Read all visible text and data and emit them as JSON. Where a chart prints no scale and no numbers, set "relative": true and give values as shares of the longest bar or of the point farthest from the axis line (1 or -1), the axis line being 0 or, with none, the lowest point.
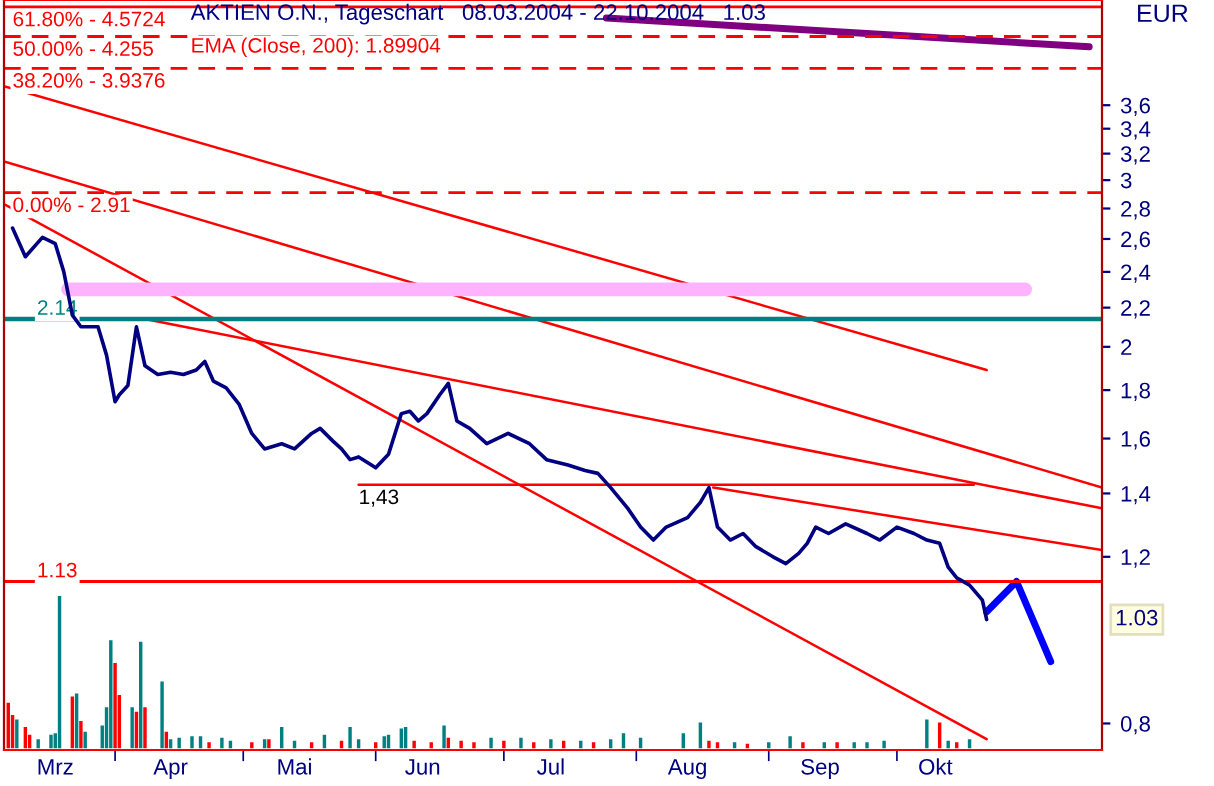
{
  "chart_data": [
    {
      "type": "line",
      "title": "AKTIEN O.N., Tageschart   08.03.2004 - 22.10.2004   1.03",
      "ylabel": "EUR",
      "log": "y",
      "grid": false,
      "legend": false,
      "xlim": [
        "2004-03-06",
        "2004-11-18"
      ],
      "xticks": [
        {
          "value": "2004-03-18",
          "label": "Mrz"
        },
        {
          "value": "2004-04-01",
          "label": null
        },
        {
          "value": "2004-04-14",
          "label": "Apr"
        },
        {
          "value": "2004-05-01",
          "label": null
        },
        {
          "value": "2004-05-13",
          "label": "Mai"
        },
        {
          "value": "2004-06-01",
          "label": null
        },
        {
          "value": "2004-06-12",
          "label": "Jun"
        },
        {
          "value": "2004-07-01",
          "label": null
        },
        {
          "value": "2004-07-12",
          "label": "Jul"
        },
        {
          "value": "2004-08-01",
          "label": null
        },
        {
          "value": "2004-08-13",
          "label": "Aug"
        },
        {
          "value": "2004-09-01",
          "label": null
        },
        {
          "value": "2004-09-13",
          "label": "Sep"
        },
        {
          "value": "2004-10-01",
          "label": null
        },
        {
          "value": "2004-10-10",
          "label": "Okt"
        }
      ],
      "ylim": [
        0.75,
        4.65
      ],
      "yticks": [
        {
          "value": 0.8,
          "label": "0,8"
        },
        {
          "value": 1.2,
          "label": "1,2"
        },
        {
          "value": 1.4,
          "label": "1,4"
        },
        {
          "value": 1.6,
          "label": "1,6"
        },
        {
          "value": 1.8,
          "label": "1,8"
        },
        {
          "value": 2,
          "label": "2"
        },
        {
          "value": 2.2,
          "label": "2,2"
        },
        {
          "value": 2.4,
          "label": "2,4"
        },
        {
          "value": 2.6,
          "label": "2,6"
        },
        {
          "value": 2.8,
          "label": "2,8"
        },
        {
          "value": 3,
          "label": "3"
        },
        {
          "value": 3.2,
          "label": "3,2"
        },
        {
          "value": 3.4,
          "label": "3,4"
        },
        {
          "value": 3.6,
          "label": "3,6"
        }
      ],
      "ref_lines": [
        {
          "axis": "y",
          "value": 4.5724,
          "color": "#ff0000",
          "line_style": "solid"
        },
        {
          "axis": "y",
          "value": 4.255,
          "color": "#ff0000",
          "line_style": "dashed"
        },
        {
          "axis": "y",
          "value": 3.9376,
          "color": "#ff0000",
          "line_style": "dashed"
        },
        {
          "axis": "y",
          "value": 2.91,
          "color": "#ff0000",
          "line_style": "dashed"
        },
        {
          "axis": "y",
          "value": 2.14,
          "label": "2.14",
          "color": "#008080",
          "line_style": "solid"
        },
        {
          "axis": "y",
          "value": 1.13,
          "label": "1.13",
          "color": "#ff0000",
          "line_style": "solid"
        }
      ],
      "annotations": [
        "EMA (Close, 200): 1.89904",
        "1.03",
        {
          "text": "61.80% - 4.5724",
          "x": "2004-03-08",
          "y": 4.5724
        },
        {
          "text": "50.00% - 4.255",
          "x": "2004-03-08",
          "y": 4.255
        },
        {
          "text": "38.20% - 3.9376",
          "x": "2004-03-08",
          "y": 3.9376
        },
        {
          "text": "0.00% - 2.91",
          "x": "2004-03-08",
          "y": 2.91
        },
        {
          "text": "1,43",
          "x": "2004-05-28",
          "y": 1.43
        }
      ],
      "series": [
        {
          "type": "line",
          "color": "#000080",
          "x": [
            "2004-03-08",
            "2004-03-11",
            "2004-03-15",
            "2004-03-18",
            "2004-03-20",
            "2004-03-22",
            "2004-03-24",
            "2004-03-28",
            "2004-03-30",
            "2004-04-01",
            "2004-04-02",
            "2004-04-04",
            "2004-04-06",
            "2004-04-08",
            "2004-04-11",
            "2004-04-14",
            "2004-04-17",
            "2004-04-20",
            "2004-04-22",
            "2004-04-24",
            "2004-04-27",
            "2004-04-30",
            "2004-05-03",
            "2004-05-06",
            "2004-05-10",
            "2004-05-13",
            "2004-05-17",
            "2004-05-19",
            "2004-05-22",
            "2004-05-24",
            "2004-05-26",
            "2004-05-28",
            "2004-05-31",
            "2004-06-01",
            "2004-06-04",
            "2004-06-07",
            "2004-06-09",
            "2004-06-11",
            "2004-06-13",
            "2004-06-16",
            "2004-06-18",
            "2004-06-20",
            "2004-06-23",
            "2004-06-27",
            "2004-07-02",
            "2004-07-07",
            "2004-07-11",
            "2004-07-16",
            "2004-07-20",
            "2004-07-23",
            "2004-07-26",
            "2004-07-30",
            "2004-08-02",
            "2004-08-05",
            "2004-08-08",
            "2004-08-13",
            "2004-08-16",
            "2004-08-18",
            "2004-08-20",
            "2004-08-23",
            "2004-08-26",
            "2004-08-29",
            "2004-09-02",
            "2004-09-05",
            "2004-09-08",
            "2004-09-10",
            "2004-09-12",
            "2004-09-15",
            "2004-09-19",
            "2004-09-24",
            "2004-09-27",
            "2004-10-01",
            "2004-10-05",
            "2004-10-08",
            "2004-10-11",
            "2004-10-13",
            "2004-10-15",
            "2004-10-18",
            "2004-10-21",
            "2004-10-22"
          ],
          "values": [
            2.67,
            2.49,
            2.61,
            2.57,
            2.4,
            2.16,
            2.1,
            2.1,
            1.96,
            1.75,
            1.78,
            1.82,
            2.1,
            1.91,
            1.87,
            1.88,
            1.87,
            1.89,
            1.93,
            1.84,
            1.81,
            1.74,
            1.62,
            1.56,
            1.58,
            1.56,
            1.62,
            1.64,
            1.59,
            1.56,
            1.52,
            1.53,
            1.5,
            1.49,
            1.54,
            1.7,
            1.71,
            1.67,
            1.7,
            1.78,
            1.83,
            1.67,
            1.64,
            1.58,
            1.62,
            1.58,
            1.52,
            1.5,
            1.48,
            1.47,
            1.42,
            1.35,
            1.29,
            1.25,
            1.29,
            1.32,
            1.37,
            1.42,
            1.29,
            1.25,
            1.27,
            1.23,
            1.2,
            1.18,
            1.21,
            1.24,
            1.29,
            1.27,
            1.3,
            1.27,
            1.25,
            1.29,
            1.27,
            1.25,
            1.24,
            1.17,
            1.14,
            1.12,
            1.08,
            1.03
          ]
        },
        {
          "type": "line",
          "color": "#ff0000",
          "x": [
            "2004-03-06",
            "2004-10-22"
          ],
          "values": [
            3.77,
            1.89
          ]
        },
        {
          "type": "line",
          "color": "#ff0000",
          "x": [
            "2004-03-06",
            "2004-11-18"
          ],
          "values": [
            3.14,
            1.42
          ]
        },
        {
          "type": "line",
          "color": "#ff0000",
          "x": [
            "2004-03-06",
            "2004-10-22"
          ],
          "values": [
            2.83,
            0.77
          ]
        },
        {
          "type": "line",
          "color": "#ff0000",
          "x": [
            "2004-04-08",
            "2004-11-18"
          ],
          "values": [
            2.14,
            1.35
          ]
        },
        {
          "type": "line",
          "color": "#ff0000",
          "x": [
            "2004-08-19",
            "2004-11-18"
          ],
          "values": [
            1.42,
            1.22
          ]
        },
        {
          "type": "line",
          "color": "#ff0000",
          "x": [
            "2004-05-28",
            "2004-10-19"
          ],
          "values": [
            1.43,
            1.43
          ]
        },
        {
          "type": "line",
          "color": "#0000ff",
          "x": [
            "2004-10-22",
            "2004-10-29",
            "2004-11-06"
          ],
          "values": [
            1.05,
            1.13,
            0.93
          ]
        },
        {
          "type": "line",
          "color": "#800080",
          "x": [
            "2004-07-25",
            "2004-11-15"
          ],
          "values": [
            4.45,
            4.15
          ]
        },
        {
          "type": "line",
          "color": "#ffb3ff",
          "x": [
            "2004-03-21",
            "2004-10-31"
          ],
          "values": [
            2.3,
            2.3
          ]
        }
      ]
    },
    {
      "type": "bar",
      "relative": true,
      "xlim": [
        "2004-03-06",
        "2004-11-18"
      ],
      "x": [
        "2004-03-07",
        "2004-03-08",
        "2004-03-09",
        "2004-03-11",
        "2004-03-12",
        "2004-03-14",
        "2004-03-17",
        "2004-03-18",
        "2004-03-19",
        "2004-03-22",
        "2004-03-23",
        "2004-03-24",
        "2004-03-25",
        "2004-03-29",
        "2004-03-30",
        "2004-03-31",
        "2004-04-01",
        "2004-04-02",
        "2004-04-05",
        "2004-04-06",
        "2004-04-07",
        "2004-04-08",
        "2004-04-12",
        "2004-04-13",
        "2004-04-14",
        "2004-04-16",
        "2004-04-19",
        "2004-04-21",
        "2004-04-23",
        "2004-04-26",
        "2004-04-28",
        "2004-05-03",
        "2004-05-06",
        "2004-05-07",
        "2004-05-10",
        "2004-05-13",
        "2004-05-17",
        "2004-05-20",
        "2004-05-24",
        "2004-05-26",
        "2004-05-28",
        "2004-06-01",
        "2004-06-03",
        "2004-06-04",
        "2004-06-07",
        "2004-06-08",
        "2004-06-10",
        "2004-06-14",
        "2004-06-17",
        "2004-06-18",
        "2004-06-21",
        "2004-06-24",
        "2004-06-28",
        "2004-07-01",
        "2004-07-05",
        "2004-07-08",
        "2004-07-12",
        "2004-07-15",
        "2004-07-19",
        "2004-07-22",
        "2004-07-26",
        "2004-07-29",
        "2004-08-02",
        "2004-08-12",
        "2004-08-16",
        "2004-08-18",
        "2004-08-20",
        "2004-08-24",
        "2004-08-27",
        "2004-09-01",
        "2004-09-06",
        "2004-09-09",
        "2004-09-14",
        "2004-09-17",
        "2004-09-21",
        "2004-09-24",
        "2004-09-28",
        "2004-10-08",
        "2004-10-11",
        "2004-10-13",
        "2004-10-15",
        "2004-10-18"
      ],
      "values": [
        0.3,
        0.22,
        0.19,
        0.14,
        0.09,
        0.06,
        0.09,
        0.1,
        1.0,
        0.34,
        0.36,
        0.18,
        0.11,
        0.15,
        0.27,
        0.71,
        0.56,
        0.35,
        0.27,
        0.24,
        0.7,
        0.27,
        0.44,
        0.11,
        0.06,
        0.07,
        0.08,
        0.08,
        0.04,
        0.07,
        0.05,
        0.04,
        0.06,
        0.06,
        0.14,
        0.05,
        0.04,
        0.09,
        0.05,
        0.14,
        0.06,
        0.04,
        0.08,
        0.09,
        0.13,
        0.14,
        0.05,
        0.04,
        0.15,
        0.07,
        0.05,
        0.04,
        0.07,
        0.05,
        0.07,
        0.04,
        0.06,
        0.05,
        0.05,
        0.04,
        0.06,
        0.1,
        0.07,
        0.1,
        0.17,
        0.05,
        0.04,
        0.04,
        0.03,
        0.04,
        0.08,
        0.04,
        0.04,
        0.04,
        0.04,
        0.04,
        0.05,
        0.19,
        0.17,
        0.05,
        0.04,
        0.06
      ],
      "colors": [
        "#ff0000",
        "#ff0000",
        "#008080",
        "#ff0000",
        "#ff0000",
        "#008080",
        "#008080",
        "#008080",
        "#008080",
        "#ff0000",
        "#008080",
        "#ff0000",
        "#008080",
        "#008080",
        "#008080",
        "#008080",
        "#ff0000",
        "#ff0000",
        "#008080",
        "#ff0000",
        "#008080",
        "#ff0000",
        "#008080",
        "#ff0000",
        "#008080",
        "#008080",
        "#008080",
        "#008080",
        "#ff0000",
        "#008080",
        "#008080",
        "#ff0000",
        "#008080",
        "#ff0000",
        "#008080",
        "#008080",
        "#ff0000",
        "#008080",
        "#ff0000",
        "#008080",
        "#008080",
        "#ff0000",
        "#008080",
        "#008080",
        "#008080",
        "#008080",
        "#ff0000",
        "#ff0000",
        "#008080",
        "#ff0000",
        "#ff0000",
        "#ff0000",
        "#008080",
        "#ff0000",
        "#008080",
        "#ff0000",
        "#008080",
        "#ff0000",
        "#008080",
        "#ff0000",
        "#008080",
        "#008080",
        "#008080",
        "#008080",
        "#008080",
        "#ff0000",
        "#ff0000",
        "#008080",
        "#ff0000",
        "#008080",
        "#008080",
        "#ff0000",
        "#008080",
        "#ff0000",
        "#008080",
        "#008080",
        "#008080",
        "#008080",
        "#ff0000",
        "#008080",
        "#ff0000",
        "#008080"
      ]
    }
  ]
}
